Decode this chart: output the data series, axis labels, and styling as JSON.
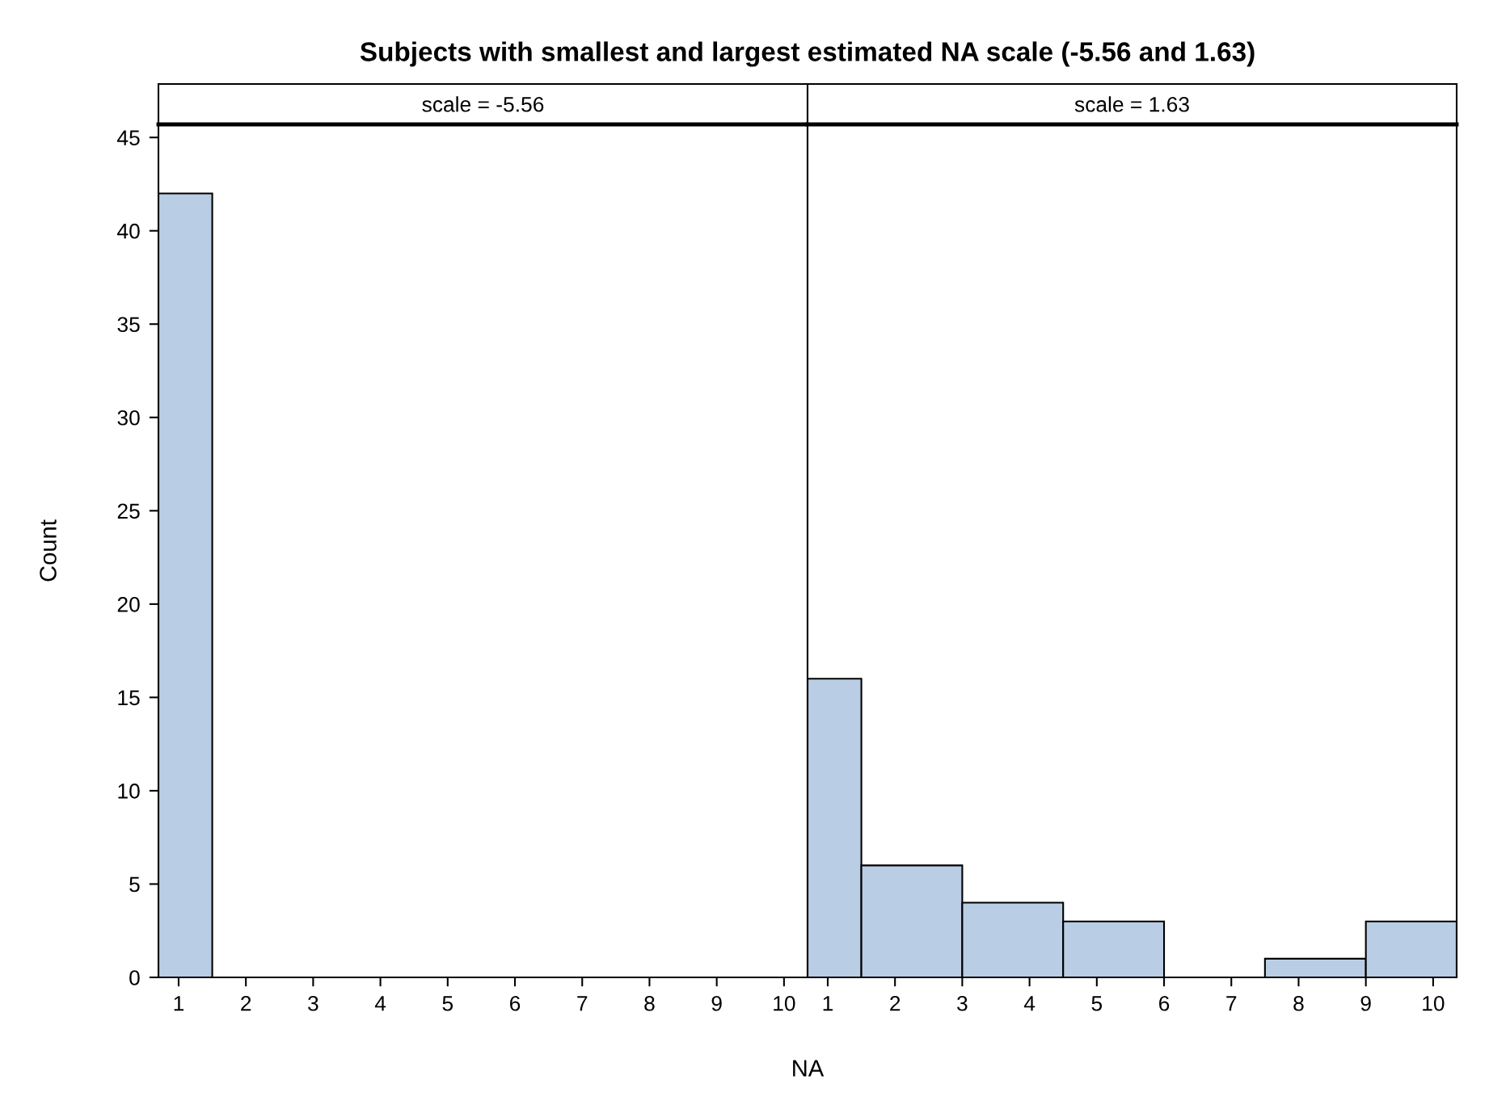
{
  "chart_data": [
    {
      "type": "histogram",
      "title": "Subjects with smallest and largest estimated NA scale (-5.56 and 1.63)",
      "subtitle": "scale = -5.56",
      "xlabel": "NA",
      "ylabel": "Count",
      "bins": [
        0.7,
        1.5
      ],
      "values": [
        42
      ],
      "color": "#b9cde5",
      "xlim": [
        0.7,
        10.35
      ],
      "ylim": [
        0,
        45.7
      ],
      "xticks": [
        1,
        2,
        3,
        4,
        5,
        6,
        7,
        8,
        9,
        10
      ],
      "yticks": [
        0,
        5,
        10,
        15,
        20,
        25,
        30,
        35,
        40,
        45
      ],
      "grid": false,
      "legend": false
    },
    {
      "type": "histogram",
      "subtitle": "scale = 1.63",
      "bins": [
        0.7,
        1.5,
        3,
        4.5,
        6,
        7.5,
        9,
        10.35
      ],
      "values": [
        16,
        6,
        4,
        3,
        0,
        1,
        3
      ],
      "color": "#b9cde5",
      "xlim": [
        0.7,
        10.35
      ],
      "ylim": [
        0,
        45.7
      ],
      "xticks": [
        1,
        2,
        3,
        4,
        5,
        6,
        7,
        8,
        9,
        10
      ],
      "yticks": [
        0,
        5,
        10,
        15,
        20,
        25,
        30,
        35,
        40,
        45
      ],
      "tick_labels": "x",
      "grid": false,
      "legend": false
    }
  ]
}
